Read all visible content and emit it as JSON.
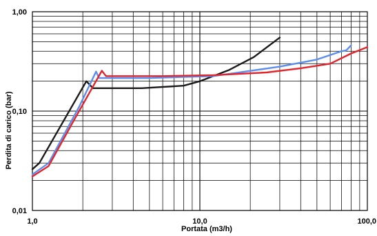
{
  "chart_data": {
    "type": "line",
    "title": "",
    "xlabel": "Portata  (m3/h)",
    "ylabel": "Perdita di carico (bar)",
    "xscale": "log",
    "yscale": "log",
    "xlim": [
      1,
      100
    ],
    "ylim": [
      0.01,
      1
    ],
    "grid": true,
    "legend": "none",
    "x_ticks": [
      {
        "value": 1,
        "label": "1,0"
      },
      {
        "value": 10,
        "label": "10,0"
      },
      {
        "value": 100,
        "label": "100,0"
      }
    ],
    "y_ticks": [
      {
        "value": 1,
        "label": "1,00"
      },
      {
        "value": 0.1,
        "label": "0,10"
      },
      {
        "value": 0.01,
        "label": "0,01"
      }
    ],
    "series": [
      {
        "color": "#1a1a1a",
        "points": [
          [
            1.0,
            0.026
          ],
          [
            1.1,
            0.03
          ],
          [
            2.1,
            0.2
          ],
          [
            2.3,
            0.17
          ],
          [
            4.5,
            0.17
          ],
          [
            8.0,
            0.18
          ],
          [
            10.0,
            0.2
          ],
          [
            15.0,
            0.26
          ],
          [
            21.0,
            0.35
          ],
          [
            30.0,
            0.55
          ]
        ]
      },
      {
        "color": "#5b8def",
        "points": [
          [
            1.0,
            0.023
          ],
          [
            1.25,
            0.03
          ],
          [
            1.9,
            0.11
          ],
          [
            2.4,
            0.25
          ],
          [
            2.5,
            0.215
          ],
          [
            5.0,
            0.215
          ],
          [
            12.0,
            0.225
          ],
          [
            30.0,
            0.28
          ],
          [
            50.0,
            0.33
          ],
          [
            70.0,
            0.4
          ],
          [
            75.0,
            0.41
          ],
          [
            80.0,
            0.46
          ]
        ]
      },
      {
        "color": "#e3242b",
        "points": [
          [
            1.0,
            0.022
          ],
          [
            1.25,
            0.028
          ],
          [
            1.8,
            0.085
          ],
          [
            2.6,
            0.255
          ],
          [
            2.75,
            0.225
          ],
          [
            6.0,
            0.225
          ],
          [
            12.0,
            0.23
          ],
          [
            25.0,
            0.245
          ],
          [
            40.0,
            0.27
          ],
          [
            60.0,
            0.3
          ],
          [
            80.0,
            0.38
          ],
          [
            100.0,
            0.44
          ]
        ]
      }
    ]
  }
}
